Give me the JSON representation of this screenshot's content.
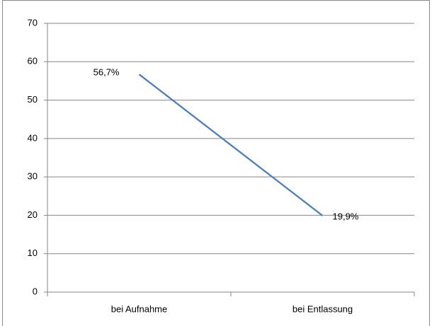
{
  "chart_data": {
    "type": "line",
    "categories": [
      "bei Aufnahme",
      "bei Entlassung"
    ],
    "values": [
      56.7,
      19.9
    ],
    "value_labels": [
      "56,7%",
      "19,9%"
    ],
    "color": "#4a7ebb",
    "ylim": [
      0,
      70
    ],
    "yticks": [
      0,
      10,
      20,
      30,
      40,
      50,
      60,
      70
    ],
    "grid": true
  }
}
